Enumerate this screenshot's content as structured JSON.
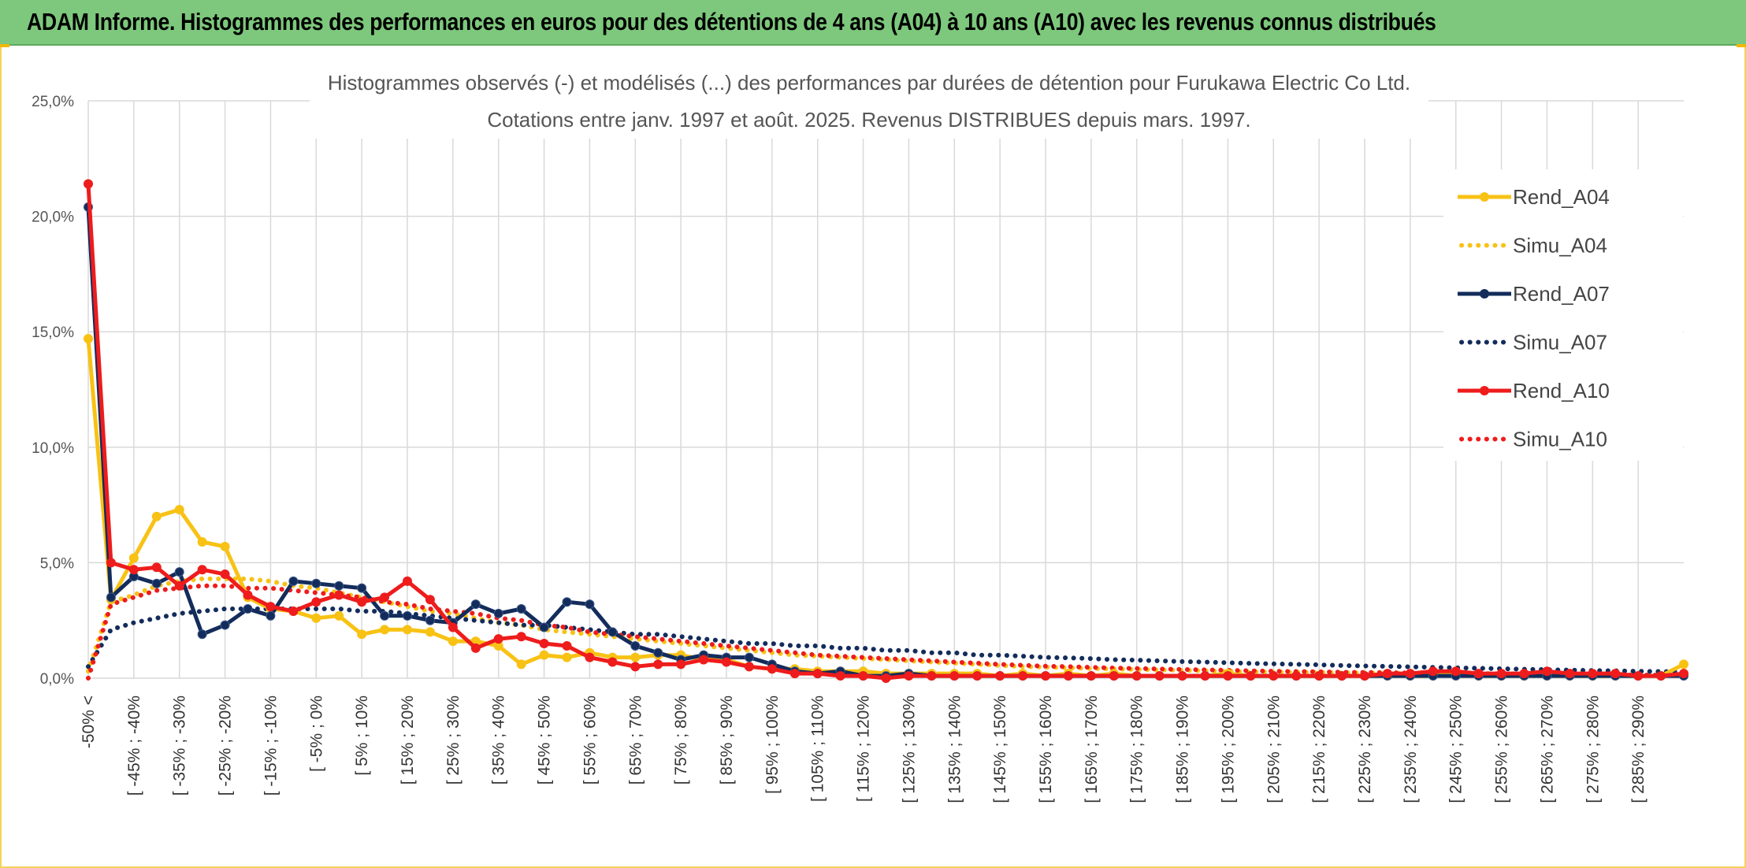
{
  "banner": {
    "title": "ADAM Informe. Histogrammes des performances en euros pour des détentions de 4 ans (A04) à 10 ans (A10) avec les revenus connus distribués"
  },
  "colors": {
    "banner_bg": "#7dc87c",
    "A04": "#f8c215",
    "A07": "#132c5b",
    "A10": "#ee1c1c",
    "grid": "#d9d9d9"
  },
  "chart_data": {
    "type": "line",
    "title": [
      "Histogrammes observés (-) et modélisés (...) des performances par durées de détention pour Furukawa Electric Co Ltd.",
      "Cotations entre janv. 1997 et août. 2025. Revenus DISTRIBUES depuis mars. 1997."
    ],
    "xlabel": "",
    "ylabel": "",
    "ylim": [
      0,
      25
    ],
    "y_ticks": [
      "0,0%",
      "5,0%",
      "10,0%",
      "15,0%",
      "20,0%",
      "25,0%"
    ],
    "grid": true,
    "legend_position": "right",
    "x_tick_labels": [
      "-50% <",
      "[ -45% ; -40%",
      "[ -35% ; -30%",
      "[ -25% ; -20%",
      "[ -15% ; -10%",
      "[ -5% ; 0%",
      "[ 5% ; 10%",
      "[ 15% ; 20%",
      "[ 25% ; 30%",
      "[ 35% ; 40%",
      "[ 45% ; 50%",
      "[ 55% ; 60%",
      "[ 65% ; 70%",
      "[ 75% ; 80%",
      "[ 85% ; 90%",
      "[ 95% ; 100%",
      "[ 105% ; 110%",
      "[ 115% ; 120%",
      "[ 125% ; 130%",
      "[ 135% ; 140%",
      "[ 145% ; 150%",
      "[ 155% ; 160%",
      "[ 165% ; 170%",
      "[ 175% ; 180%",
      "[ 185% ; 190%",
      "[ 195% ; 200%",
      "[ 205% ; 210%",
      "[ 215% ; 220%",
      "[ 225% ; 230%",
      "[ 235% ; 240%",
      "[ 245% ; 250%",
      "[ 255% ; 260%",
      "[ 265% ; 270%",
      "[ 275% ; 280%",
      "[ 285% ; 290%"
    ],
    "series": [
      {
        "name": "Rend_A04",
        "style": "solid",
        "color": "#f8c215",
        "values": [
          14.7,
          3.4,
          5.2,
          7.0,
          7.3,
          5.9,
          5.7,
          3.5,
          3.0,
          2.9,
          2.6,
          2.7,
          1.9,
          2.1,
          2.1,
          2.0,
          1.6,
          1.6,
          1.4,
          0.6,
          1.0,
          0.9,
          1.1,
          0.9,
          0.9,
          1.0,
          1.0,
          0.8,
          0.8,
          0.5,
          0.4,
          0.4,
          0.3,
          0.3,
          0.3,
          0.2,
          0.2,
          0.2,
          0.2,
          0.2,
          0.1,
          0.2,
          0.1,
          0.2,
          0.1,
          0.2,
          0.1,
          0.1,
          0.1,
          0.1,
          0.2,
          0.1,
          0.1,
          0.1,
          0.1,
          0.1,
          0.1,
          0.1,
          0.1,
          0.1,
          0.2,
          0.1,
          0.1,
          0.1,
          0.1,
          0.1,
          0.1,
          0.1,
          0.1,
          0.1,
          0.6
        ]
      },
      {
        "name": "Simu_A04",
        "style": "dotted",
        "color": "#f8c215",
        "values": [
          0.3,
          3.3,
          3.6,
          4.0,
          4.2,
          4.3,
          4.3,
          4.3,
          4.2,
          4.0,
          3.9,
          3.7,
          3.5,
          3.3,
          3.1,
          2.9,
          2.8,
          2.6,
          2.4,
          2.3,
          2.1,
          2.0,
          1.9,
          1.8,
          1.7,
          1.6,
          1.5,
          1.4,
          1.3,
          1.2,
          1.1,
          1.0,
          0.95,
          0.9,
          0.85,
          0.8,
          0.75,
          0.7,
          0.65,
          0.6,
          0.55,
          0.5,
          0.48,
          0.45,
          0.42,
          0.4,
          0.38,
          0.36,
          0.34,
          0.32,
          0.3,
          0.28,
          0.27,
          0.26,
          0.25,
          0.24,
          0.23,
          0.22,
          0.21,
          0.2,
          0.19,
          0.18,
          0.17,
          0.16,
          0.15,
          0.14,
          0.13,
          0.13,
          0.12,
          0.12,
          0.11
        ]
      },
      {
        "name": "Rend_A07",
        "style": "solid",
        "color": "#132c5b",
        "values": [
          20.4,
          3.5,
          4.4,
          4.1,
          4.6,
          1.9,
          2.3,
          3.0,
          2.7,
          4.2,
          4.1,
          4.0,
          3.9,
          2.7,
          2.7,
          2.5,
          2.4,
          3.2,
          2.8,
          3.0,
          2.2,
          3.3,
          3.2,
          2.0,
          1.4,
          1.1,
          0.8,
          1.0,
          0.9,
          0.9,
          0.6,
          0.3,
          0.2,
          0.3,
          0.1,
          0.1,
          0.2,
          0.1,
          0.1,
          0.1,
          0.1,
          0.1,
          0.1,
          0.1,
          0.1,
          0.1,
          0.1,
          0.1,
          0.1,
          0.1,
          0.1,
          0.1,
          0.1,
          0.1,
          0.1,
          0.1,
          0.1,
          0.1,
          0.1,
          0.1,
          0.1,
          0.1,
          0.1,
          0.1,
          0.1,
          0.1,
          0.1,
          0.1,
          0.1,
          0.1,
          0.1
        ]
      },
      {
        "name": "Simu_A07",
        "style": "dotted",
        "color": "#132c5b",
        "values": [
          0.5,
          2.1,
          2.4,
          2.6,
          2.8,
          2.9,
          3.0,
          3.0,
          3.0,
          3.0,
          3.0,
          3.0,
          2.9,
          2.9,
          2.8,
          2.7,
          2.6,
          2.5,
          2.4,
          2.3,
          2.3,
          2.2,
          2.1,
          2.0,
          1.9,
          1.9,
          1.8,
          1.7,
          1.6,
          1.5,
          1.5,
          1.4,
          1.4,
          1.3,
          1.3,
          1.2,
          1.2,
          1.1,
          1.1,
          1.0,
          1.0,
          0.95,
          0.9,
          0.88,
          0.85,
          0.8,
          0.78,
          0.75,
          0.72,
          0.7,
          0.67,
          0.64,
          0.62,
          0.6,
          0.58,
          0.55,
          0.53,
          0.51,
          0.49,
          0.47,
          0.45,
          0.43,
          0.41,
          0.39,
          0.37,
          0.35,
          0.33,
          0.32,
          0.3,
          0.29,
          0.28
        ]
      },
      {
        "name": "Rend_A10",
        "style": "solid",
        "color": "#ee1c1c",
        "values": [
          21.4,
          5.0,
          4.7,
          4.8,
          4.0,
          4.7,
          4.5,
          3.6,
          3.1,
          2.9,
          3.3,
          3.6,
          3.3,
          3.5,
          4.2,
          3.4,
          2.2,
          1.3,
          1.7,
          1.8,
          1.5,
          1.4,
          0.9,
          0.7,
          0.5,
          0.6,
          0.6,
          0.8,
          0.7,
          0.5,
          0.4,
          0.2,
          0.2,
          0.1,
          0.1,
          0.0,
          0.1,
          0.1,
          0.1,
          0.1,
          0.1,
          0.1,
          0.1,
          0.1,
          0.1,
          0.1,
          0.1,
          0.1,
          0.1,
          0.1,
          0.1,
          0.1,
          0.1,
          0.1,
          0.1,
          0.1,
          0.1,
          0.2,
          0.2,
          0.3,
          0.3,
          0.2,
          0.2,
          0.2,
          0.3,
          0.2,
          0.2,
          0.2,
          0.1,
          0.1,
          0.2
        ]
      },
      {
        "name": "Simu_A10",
        "style": "dotted",
        "color": "#ee1c1c",
        "values": [
          0.0,
          3.2,
          3.5,
          3.8,
          3.9,
          4.0,
          4.0,
          3.9,
          3.9,
          3.8,
          3.7,
          3.6,
          3.5,
          3.3,
          3.2,
          3.0,
          2.9,
          2.8,
          2.6,
          2.5,
          2.3,
          2.2,
          2.0,
          1.9,
          1.8,
          1.7,
          1.6,
          1.5,
          1.4,
          1.3,
          1.2,
          1.1,
          1.0,
          0.95,
          0.9,
          0.85,
          0.8,
          0.75,
          0.7,
          0.65,
          0.6,
          0.56,
          0.52,
          0.5,
          0.47,
          0.44,
          0.42,
          0.4,
          0.38,
          0.36,
          0.34,
          0.32,
          0.3,
          0.29,
          0.28,
          0.26,
          0.25,
          0.24,
          0.23,
          0.22,
          0.21,
          0.2,
          0.19,
          0.18,
          0.17,
          0.16,
          0.15,
          0.14,
          0.14,
          0.13,
          0.12
        ]
      }
    ]
  }
}
